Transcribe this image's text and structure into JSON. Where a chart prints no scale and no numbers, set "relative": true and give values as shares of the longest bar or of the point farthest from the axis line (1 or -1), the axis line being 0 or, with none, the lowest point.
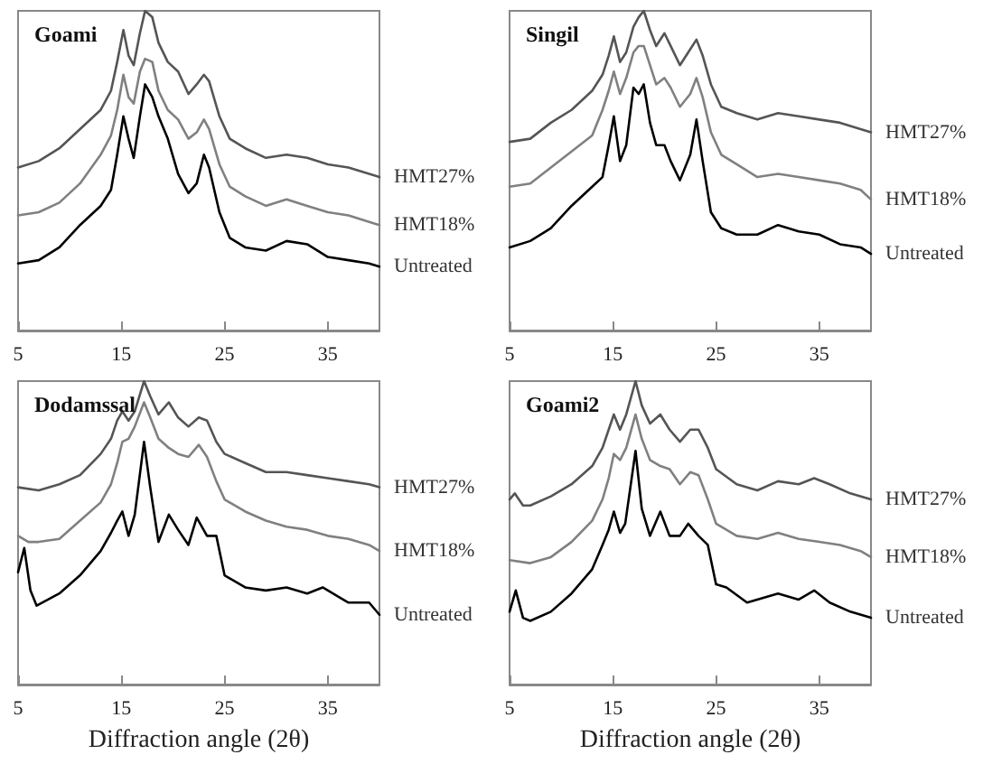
{
  "chart_data": [
    {
      "type": "line",
      "title": "Goami",
      "relative": true,
      "xlim": [
        5,
        40
      ],
      "xticks": [
        5,
        15,
        25,
        35
      ],
      "marker": "none",
      "line_style": "solid",
      "series": [
        {
          "name": "HMT27%",
          "color": "#555555",
          "x": [
            5,
            7,
            9,
            11,
            13,
            14,
            14.6,
            15.2,
            15.7,
            16.2,
            16.8,
            17.3,
            18,
            18.6,
            19.5,
            20.5,
            21.5,
            22.3,
            23,
            23.5,
            24.5,
            25.5,
            27,
            29,
            31,
            33,
            35,
            37,
            39,
            40
          ],
          "values": [
            0.51,
            0.53,
            0.57,
            0.63,
            0.69,
            0.75,
            0.84,
            0.94,
            0.86,
            0.83,
            0.93,
            1.0,
            0.98,
            0.9,
            0.84,
            0.81,
            0.74,
            0.77,
            0.8,
            0.78,
            0.67,
            0.6,
            0.57,
            0.54,
            0.55,
            0.54,
            0.52,
            0.51,
            0.49,
            0.48
          ]
        },
        {
          "name": "HMT18%",
          "color": "#808080",
          "x": [
            5,
            7,
            9,
            11,
            13,
            14,
            14.6,
            15.2,
            15.7,
            16.2,
            16.8,
            17.3,
            18,
            18.6,
            19.5,
            20.5,
            21.5,
            22.3,
            23,
            23.5,
            24.5,
            25.5,
            27,
            29,
            31,
            33,
            35,
            37,
            39,
            40
          ],
          "values": [
            0.36,
            0.37,
            0.4,
            0.46,
            0.55,
            0.61,
            0.69,
            0.8,
            0.73,
            0.71,
            0.81,
            0.85,
            0.84,
            0.75,
            0.69,
            0.66,
            0.6,
            0.62,
            0.66,
            0.63,
            0.52,
            0.45,
            0.42,
            0.39,
            0.41,
            0.39,
            0.37,
            0.36,
            0.34,
            0.33
          ]
        },
        {
          "name": "Untreated",
          "color": "#000000",
          "x": [
            5,
            7,
            9,
            11,
            13,
            14,
            14.6,
            15.2,
            15.7,
            16.2,
            16.8,
            17.3,
            18,
            18.6,
            19.5,
            20.5,
            21.5,
            22.3,
            23,
            23.5,
            24.5,
            25.5,
            27,
            29,
            31,
            33,
            35,
            37,
            39,
            40
          ],
          "values": [
            0.21,
            0.22,
            0.26,
            0.33,
            0.39,
            0.44,
            0.55,
            0.67,
            0.6,
            0.54,
            0.67,
            0.77,
            0.73,
            0.67,
            0.6,
            0.49,
            0.43,
            0.46,
            0.55,
            0.51,
            0.37,
            0.29,
            0.26,
            0.25,
            0.28,
            0.27,
            0.23,
            0.22,
            0.21,
            0.2
          ]
        }
      ]
    },
    {
      "type": "line",
      "title": "Singil",
      "relative": true,
      "xlim": [
        5,
        40
      ],
      "xticks": [
        5,
        15,
        25,
        35
      ],
      "marker": "none",
      "line_style": "solid",
      "series": [
        {
          "name": "HMT27%",
          "color": "#555555",
          "x": [
            5,
            7,
            9,
            11,
            13,
            14,
            14.6,
            15.1,
            15.7,
            16.3,
            17,
            17.5,
            18,
            18.6,
            19.2,
            20,
            20.6,
            21.5,
            22.5,
            23.1,
            23.7,
            24.5,
            25.5,
            27,
            29,
            31,
            33,
            35,
            37,
            39,
            40
          ],
          "values": [
            0.59,
            0.6,
            0.65,
            0.69,
            0.75,
            0.8,
            0.86,
            0.92,
            0.84,
            0.87,
            0.95,
            0.98,
            1.0,
            0.94,
            0.89,
            0.93,
            0.89,
            0.83,
            0.88,
            0.91,
            0.86,
            0.77,
            0.7,
            0.68,
            0.66,
            0.68,
            0.67,
            0.66,
            0.65,
            0.63,
            0.62
          ]
        },
        {
          "name": "HMT18%",
          "color": "#808080",
          "x": [
            5,
            7,
            9,
            11,
            13,
            14,
            14.6,
            15.1,
            15.7,
            16.3,
            17,
            17.5,
            18,
            18.6,
            19.2,
            20,
            20.6,
            21.5,
            22.5,
            23.1,
            23.7,
            24.5,
            25.5,
            27,
            29,
            31,
            33,
            35,
            37,
            39,
            40
          ],
          "values": [
            0.45,
            0.46,
            0.51,
            0.56,
            0.61,
            0.69,
            0.75,
            0.81,
            0.74,
            0.79,
            0.87,
            0.89,
            0.89,
            0.83,
            0.77,
            0.79,
            0.76,
            0.7,
            0.74,
            0.79,
            0.73,
            0.62,
            0.55,
            0.52,
            0.48,
            0.49,
            0.48,
            0.47,
            0.46,
            0.44,
            0.41
          ]
        },
        {
          "name": "Untreated",
          "color": "#000000",
          "x": [
            5,
            7,
            9,
            11,
            13,
            14,
            14.6,
            15.1,
            15.7,
            16.3,
            17,
            17.5,
            18,
            18.6,
            19.2,
            20,
            20.6,
            21.5,
            22.5,
            23.1,
            23.7,
            24.5,
            25.5,
            27,
            29,
            31,
            33,
            35,
            37,
            39,
            40
          ],
          "values": [
            0.26,
            0.28,
            0.32,
            0.39,
            0.45,
            0.48,
            0.58,
            0.67,
            0.53,
            0.58,
            0.76,
            0.74,
            0.77,
            0.65,
            0.58,
            0.58,
            0.53,
            0.47,
            0.55,
            0.66,
            0.53,
            0.37,
            0.32,
            0.3,
            0.3,
            0.33,
            0.31,
            0.3,
            0.27,
            0.26,
            0.24
          ]
        }
      ]
    },
    {
      "type": "line",
      "title": "Dodamssal",
      "xlabel": "Diffraction angle (2θ)",
      "relative": true,
      "xlim": [
        5,
        40
      ],
      "xticks": [
        5,
        15,
        25,
        35
      ],
      "marker": "none",
      "line_style": "solid",
      "series": [
        {
          "name": "HMT27%",
          "color": "#555555",
          "x": [
            5,
            7,
            9,
            11,
            13,
            14,
            14.6,
            15.1,
            15.7,
            16.3,
            17.2,
            17.8,
            18.6,
            19.6,
            20.5,
            21.5,
            22.5,
            23.3,
            24.2,
            25,
            27,
            29,
            31,
            33,
            35,
            37,
            39,
            40
          ],
          "values": [
            0.65,
            0.64,
            0.66,
            0.69,
            0.76,
            0.81,
            0.87,
            0.9,
            0.87,
            0.9,
            1.0,
            0.95,
            0.89,
            0.93,
            0.88,
            0.85,
            0.88,
            0.87,
            0.8,
            0.76,
            0.73,
            0.7,
            0.7,
            0.69,
            0.68,
            0.67,
            0.66,
            0.65
          ]
        },
        {
          "name": "HMT18%",
          "color": "#808080",
          "x": [
            5,
            6,
            7,
            9,
            11,
            13,
            14,
            14.6,
            15.1,
            15.7,
            16.3,
            17.2,
            17.8,
            18.6,
            19.6,
            20.5,
            21.5,
            22.5,
            23.3,
            24.2,
            25,
            27,
            29,
            31,
            33,
            35,
            37,
            39,
            40
          ],
          "values": [
            0.49,
            0.47,
            0.47,
            0.48,
            0.54,
            0.6,
            0.66,
            0.73,
            0.8,
            0.81,
            0.85,
            0.93,
            0.88,
            0.81,
            0.78,
            0.76,
            0.75,
            0.79,
            0.75,
            0.67,
            0.61,
            0.57,
            0.54,
            0.52,
            0.51,
            0.49,
            0.48,
            0.46,
            0.44
          ]
        },
        {
          "name": "Untreated",
          "color": "#000000",
          "x": [
            5,
            5.6,
            6.2,
            6.8,
            9,
            11,
            13,
            14,
            14.6,
            15.1,
            15.7,
            16.3,
            17.2,
            17.8,
            18.6,
            19.6,
            20.5,
            21.5,
            22.3,
            23.3,
            24.2,
            25,
            27,
            29,
            31,
            33,
            34.5,
            36,
            37,
            39,
            40
          ],
          "values": [
            0.37,
            0.45,
            0.31,
            0.26,
            0.3,
            0.36,
            0.44,
            0.5,
            0.54,
            0.57,
            0.49,
            0.56,
            0.8,
            0.65,
            0.47,
            0.56,
            0.51,
            0.46,
            0.55,
            0.49,
            0.49,
            0.36,
            0.32,
            0.31,
            0.32,
            0.3,
            0.32,
            0.29,
            0.27,
            0.27,
            0.23
          ]
        }
      ]
    },
    {
      "type": "line",
      "title": "Goami2",
      "xlabel": "Diffraction angle (2θ)",
      "relative": true,
      "xlim": [
        5,
        40
      ],
      "xticks": [
        5,
        15,
        25,
        35
      ],
      "marker": "none",
      "line_style": "solid",
      "series": [
        {
          "name": "HMT27%",
          "color": "#555555",
          "x": [
            5,
            5.5,
            6.3,
            7,
            9,
            11,
            13,
            14,
            14.6,
            15.1,
            15.7,
            16.3,
            17.2,
            17.8,
            18.6,
            19.6,
            20.5,
            21.5,
            22.5,
            23.3,
            24.2,
            25,
            27,
            29,
            31,
            33,
            34.5,
            36,
            38,
            40
          ],
          "values": [
            0.61,
            0.63,
            0.59,
            0.59,
            0.62,
            0.66,
            0.72,
            0.78,
            0.84,
            0.89,
            0.84,
            0.89,
            1.0,
            0.92,
            0.86,
            0.89,
            0.84,
            0.8,
            0.84,
            0.84,
            0.78,
            0.71,
            0.66,
            0.64,
            0.67,
            0.66,
            0.68,
            0.66,
            0.63,
            0.61
          ]
        },
        {
          "name": "HMT18%",
          "color": "#808080",
          "x": [
            5,
            7,
            9,
            11,
            13,
            14,
            14.6,
            15.1,
            15.7,
            16.3,
            17.2,
            17.8,
            18.6,
            19.6,
            20.5,
            21.5,
            22.5,
            23.3,
            24.2,
            25,
            27,
            29,
            31,
            33,
            35,
            37,
            39,
            40
          ],
          "values": [
            0.41,
            0.4,
            0.42,
            0.47,
            0.54,
            0.61,
            0.68,
            0.76,
            0.74,
            0.78,
            0.89,
            0.81,
            0.74,
            0.72,
            0.71,
            0.66,
            0.7,
            0.69,
            0.61,
            0.53,
            0.49,
            0.48,
            0.5,
            0.48,
            0.47,
            0.46,
            0.44,
            0.42
          ]
        },
        {
          "name": "Untreated",
          "color": "#000000",
          "x": [
            5,
            5.6,
            6.3,
            7,
            9,
            11,
            13,
            14,
            14.6,
            15.1,
            15.7,
            16.2,
            17.2,
            17.8,
            18.6,
            19.6,
            20.5,
            21.5,
            22.3,
            23.3,
            24.2,
            25,
            26,
            28,
            31,
            33,
            34.5,
            36,
            38,
            40
          ],
          "values": [
            0.24,
            0.31,
            0.22,
            0.21,
            0.24,
            0.3,
            0.38,
            0.46,
            0.51,
            0.57,
            0.5,
            0.53,
            0.77,
            0.58,
            0.49,
            0.57,
            0.49,
            0.49,
            0.53,
            0.49,
            0.46,
            0.33,
            0.32,
            0.27,
            0.3,
            0.28,
            0.31,
            0.27,
            0.24,
            0.22
          ]
        }
      ]
    }
  ]
}
